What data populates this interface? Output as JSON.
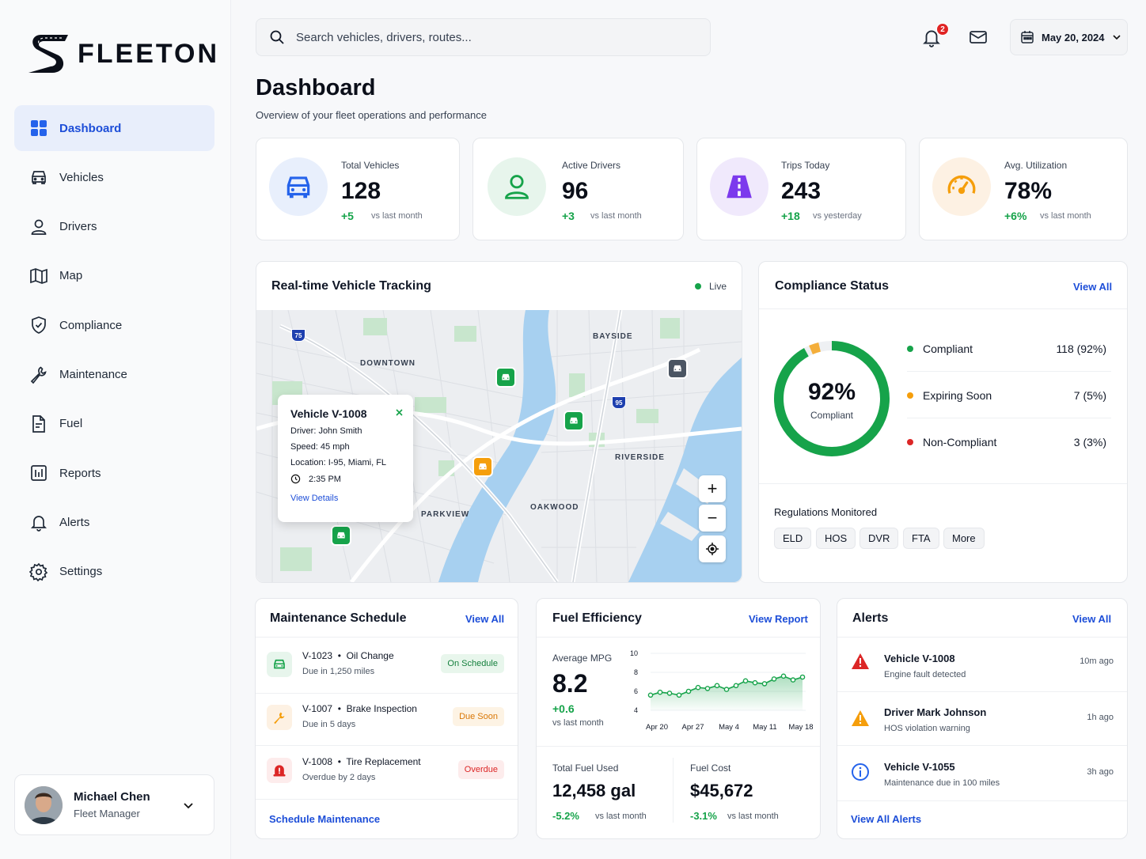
{
  "brand": {
    "name": "FLEETON"
  },
  "sidebar": {
    "items": [
      {
        "label": "Dashboard",
        "icon": "dashboard-icon",
        "active": true
      },
      {
        "label": "Vehicles",
        "icon": "car-icon"
      },
      {
        "label": "Drivers",
        "icon": "user-icon"
      },
      {
        "label": "Map",
        "icon": "map-icon"
      },
      {
        "label": "Compliance",
        "icon": "shield-check-icon"
      },
      {
        "label": "Maintenance",
        "icon": "wrench-icon"
      },
      {
        "label": "Fuel",
        "icon": "document-icon"
      },
      {
        "label": "Reports",
        "icon": "report-icon"
      },
      {
        "label": "Alerts",
        "icon": "bell-icon"
      },
      {
        "label": "Settings",
        "icon": "gear-icon"
      }
    ]
  },
  "user": {
    "name": "Michael Chen",
    "role": "Fleet Manager"
  },
  "header": {
    "search_placeholder": "Search vehicles, drivers, routes...",
    "notification_count": "2",
    "date": "May 20, 2024"
  },
  "page": {
    "title": "Dashboard",
    "subtitle": "Overview of your fleet operations and performance"
  },
  "stats": [
    {
      "label": "Total Vehicles",
      "value": "128",
      "delta": "+5",
      "compare": "vs last month",
      "color": "#2563eb",
      "bg": "#e8effc"
    },
    {
      "label": "Active Drivers",
      "value": "96",
      "delta": "+3",
      "compare": "vs last month",
      "color": "#16a34a",
      "bg": "#e7f5ec"
    },
    {
      "label": "Trips Today",
      "value": "243",
      "delta": "+18",
      "compare": "vs yesterday",
      "color": "#7c3aed",
      "bg": "#f0e9fc"
    },
    {
      "label": "Avg. Utilization",
      "value": "78%",
      "delta": "+6%",
      "compare": "vs last month",
      "color": "#f59e0b",
      "bg": "#fdf1e3"
    }
  ],
  "tracking": {
    "title": "Real-time Vehicle Tracking",
    "status": "Live",
    "labels": {
      "downtown": "DOWNTOWN",
      "bayside": "BAYSIDE",
      "riverside": "RIVERSIDE",
      "parkview": "PARKVIEW",
      "oakwood": "OAKWOOD"
    },
    "shields": {
      "i75": "75",
      "i95": "95"
    },
    "popup": {
      "title": "Vehicle V-1008",
      "driver": "Driver: John Smith",
      "speed": "Speed: 45 mph",
      "location": "Location: I-95, Miami, FL",
      "time": "2:35 PM",
      "link": "View Details"
    }
  },
  "compliance": {
    "title": "Compliance Status",
    "link": "View All",
    "percent": "92%",
    "percent_label": "Compliant",
    "compliant_fraction": 0.92,
    "expiring_fraction": 0.05,
    "rows": [
      {
        "label": "Compliant",
        "value": "118 (92%)",
        "color": "#16a34a"
      },
      {
        "label": "Expiring Soon",
        "value": "7 (5%)",
        "color": "#f59e0b"
      },
      {
        "label": "Non-Compliant",
        "value": "3 (3%)",
        "color": "#dc2626"
      }
    ],
    "regs_title": "Regulations Monitored",
    "regs": [
      "ELD",
      "HOS",
      "DVR",
      "FTA",
      "More"
    ]
  },
  "maintenance": {
    "title": "Maintenance Schedule",
    "link": "View All",
    "rows": [
      {
        "vehicle": "V-1023",
        "task": "Oil Change",
        "sub": "Due in 1,250 miles",
        "status": "On Schedule",
        "status_color": "#15803d",
        "status_bg": "#e8f6ec",
        "icon": "car-icon",
        "icon_color": "#16a34a",
        "icon_bg": "#e7f5ec"
      },
      {
        "vehicle": "V-1007",
        "task": "Brake Inspection",
        "sub": "Due in 5 days",
        "status": "Due Soon",
        "status_color": "#d97706",
        "status_bg": "#fdf3e4",
        "icon": "wrench-icon",
        "icon_color": "#f59e0b",
        "icon_bg": "#fdf1e3"
      },
      {
        "vehicle": "V-1008",
        "task": "Tire Replacement",
        "sub": "Overdue by 2 days",
        "status": "Overdue",
        "status_color": "#dc2626",
        "status_bg": "#fdecec",
        "icon": "alert-icon",
        "icon_color": "#dc2626",
        "icon_bg": "#fdecec"
      }
    ],
    "action": "Schedule Maintenance"
  },
  "fuel": {
    "title": "Fuel Efficiency",
    "link": "View Report",
    "avg_label": "Average MPG",
    "avg_value": "8.2",
    "avg_delta": "+0.6",
    "avg_compare": "vs last month",
    "total_label": "Total Fuel Used",
    "total_value": "12,458 gal",
    "total_delta": "-5.2%",
    "total_compare": "vs last month",
    "cost_label": "Fuel Cost",
    "cost_value": "$45,672",
    "cost_delta": "-3.1%",
    "cost_compare": "vs last month"
  },
  "chart_data": {
    "type": "area",
    "x_ticks": [
      "Apr 20",
      "Apr 27",
      "May 4",
      "May 11",
      "May 18"
    ],
    "y_ticks": [
      4,
      6,
      8,
      10
    ],
    "ylim": [
      4,
      10
    ],
    "series": [
      {
        "values": [
          5.6,
          5.9,
          5.8,
          5.6,
          6.0,
          6.4,
          6.3,
          6.6,
          6.2,
          6.6,
          7.1,
          6.9,
          6.8,
          7.3,
          7.6,
          7.2,
          7.5
        ]
      }
    ]
  },
  "alerts": {
    "title": "Alerts",
    "link": "View All",
    "rows": [
      {
        "title": "Vehicle V-1008",
        "sub": "Engine fault detected",
        "time": "10m ago",
        "icon": "warning-red-icon",
        "color": "#dc2626"
      },
      {
        "title": "Driver Mark Johnson",
        "sub": "HOS violation warning",
        "time": "1h ago",
        "icon": "warning-orange-icon",
        "color": "#f59e0b"
      },
      {
        "title": "Vehicle V-1055",
        "sub": "Maintenance due in 100 miles",
        "time": "3h ago",
        "icon": "info-icon",
        "color": "#2563eb"
      }
    ],
    "action": "View All Alerts"
  }
}
